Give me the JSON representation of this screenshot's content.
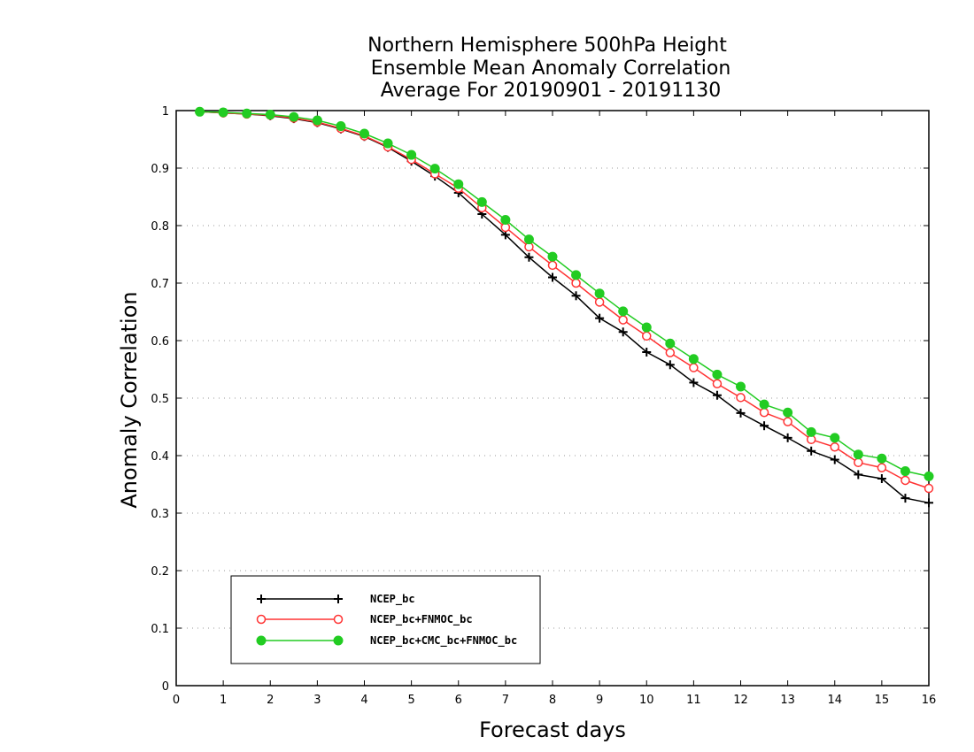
{
  "chart_data": {
    "type": "line",
    "title": [
      "Northern Hemisphere 500hPa Height",
      "Ensemble Mean Anomaly Correlation",
      "Average For 20190901 - 20191130"
    ],
    "xlabel": "Forecast days",
    "ylabel": "Anomaly Correlation",
    "xlim": [
      0,
      16
    ],
    "ylim": [
      0,
      1
    ],
    "xticks": [
      "0",
      "1",
      "2",
      "3",
      "4",
      "5",
      "6",
      "7",
      "8",
      "9",
      "10",
      "11",
      "12",
      "13",
      "14",
      "15",
      "16"
    ],
    "yticks": [
      "0",
      "0.1",
      "0.2",
      "0.3",
      "0.4",
      "0.5",
      "0.6",
      "0.7",
      "0.8",
      "0.9",
      "1"
    ],
    "grid": "horizontal dotted",
    "legend_position": "bottom-left",
    "x": [
      0.5,
      1,
      1.5,
      2,
      2.5,
      3,
      3.5,
      4,
      4.5,
      5,
      5.5,
      6,
      6.5,
      7,
      7.5,
      8,
      8.5,
      9,
      9.5,
      10,
      10.5,
      11,
      11.5,
      12,
      12.5,
      13,
      13.5,
      14,
      14.5,
      15,
      15.5,
      16
    ],
    "series": [
      {
        "name": "NCEP_bc",
        "color": "#000000",
        "marker": "plus",
        "values": [
          0.998,
          0.996,
          0.994,
          0.991,
          0.986,
          0.979,
          0.968,
          0.955,
          0.936,
          0.912,
          0.886,
          0.857,
          0.82,
          0.784,
          0.745,
          0.71,
          0.678,
          0.639,
          0.615,
          0.58,
          0.558,
          0.527,
          0.505,
          0.474,
          0.452,
          0.431,
          0.408,
          0.393,
          0.367,
          0.36,
          0.326,
          0.318
        ]
      },
      {
        "name": "NCEP_bc+FNMOC_bc",
        "color": "#ff3333",
        "marker": "open-circle",
        "values": [
          0.998,
          0.996,
          0.994,
          0.992,
          0.987,
          0.98,
          0.969,
          0.956,
          0.937,
          0.915,
          0.89,
          0.865,
          0.831,
          0.797,
          0.763,
          0.731,
          0.7,
          0.667,
          0.636,
          0.608,
          0.579,
          0.553,
          0.525,
          0.501,
          0.475,
          0.459,
          0.428,
          0.415,
          0.388,
          0.379,
          0.357,
          0.343
        ]
      },
      {
        "name": "NCEP_bc+CMC_bc+FNMOC_bc",
        "color": "#22cc22",
        "marker": "filled-circle",
        "values": [
          0.998,
          0.997,
          0.995,
          0.993,
          0.989,
          0.983,
          0.973,
          0.96,
          0.943,
          0.923,
          0.899,
          0.872,
          0.841,
          0.81,
          0.776,
          0.746,
          0.714,
          0.682,
          0.651,
          0.623,
          0.595,
          0.568,
          0.541,
          0.52,
          0.489,
          0.475,
          0.441,
          0.431,
          0.402,
          0.395,
          0.373,
          0.364
        ]
      }
    ]
  }
}
